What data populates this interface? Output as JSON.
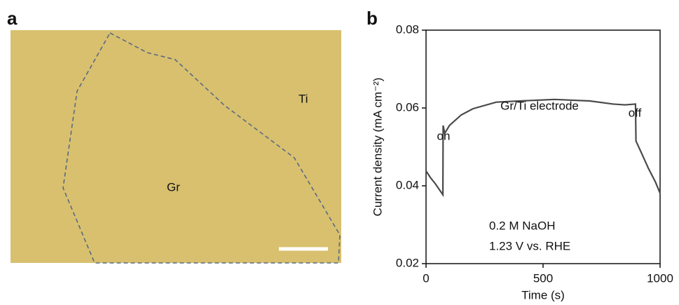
{
  "panel_a": {
    "label": "a",
    "annotations": [
      "Ti",
      "Gr"
    ]
  },
  "chart_data": {
    "type": "line",
    "label": "b",
    "xlabel": "Time (s)",
    "ylabel": "Current density (mA cm⁻²)",
    "xlim": [
      0,
      1000
    ],
    "xticks": [
      0,
      500,
      1000
    ],
    "ylim": [
      0.02,
      0.08
    ],
    "yticks": [
      0.02,
      0.04,
      0.06,
      0.08
    ],
    "annotations": [
      "Gr/Ti electrode",
      "on",
      "off",
      "0.2 M NaOH",
      "1.23 V vs. RHE"
    ],
    "series": [
      {
        "color": "#4a4a4a",
        "x": [
          0,
          20,
          40,
          72,
          73,
          80,
          100,
          150,
          200,
          300,
          400,
          550,
          700,
          800,
          850,
          895,
          897,
          920,
          950,
          980,
          1000
        ],
        "values": [
          0.0438,
          0.042,
          0.0405,
          0.0377,
          0.0555,
          0.0535,
          0.0555,
          0.0582,
          0.0598,
          0.0615,
          0.0618,
          0.0622,
          0.0618,
          0.061,
          0.0608,
          0.061,
          0.0515,
          0.0485,
          0.0445,
          0.041,
          0.0381
        ]
      }
    ]
  }
}
